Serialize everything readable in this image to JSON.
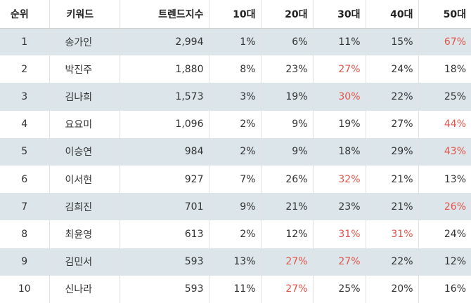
{
  "table": {
    "headers": [
      "순위",
      "키워드",
      "트렌드지수",
      "10대",
      "20대",
      "30대",
      "40대",
      "50대"
    ],
    "highlight_color": "#e2554a",
    "rows": [
      {
        "rank": "1",
        "keyword": "송가인",
        "index": "2,994",
        "a10": "1%",
        "a20": "6%",
        "a30": "11%",
        "a40": "15%",
        "a50": "67%",
        "hi": [
          "a50"
        ]
      },
      {
        "rank": "2",
        "keyword": "박진주",
        "index": "1,880",
        "a10": "8%",
        "a20": "23%",
        "a30": "27%",
        "a40": "24%",
        "a50": "18%",
        "hi": [
          "a30"
        ]
      },
      {
        "rank": "3",
        "keyword": "김나희",
        "index": "1,573",
        "a10": "3%",
        "a20": "19%",
        "a30": "30%",
        "a40": "22%",
        "a50": "25%",
        "hi": [
          "a30"
        ]
      },
      {
        "rank": "4",
        "keyword": "요요미",
        "index": "1,096",
        "a10": "2%",
        "a20": "9%",
        "a30": "19%",
        "a40": "27%",
        "a50": "44%",
        "hi": [
          "a50"
        ]
      },
      {
        "rank": "5",
        "keyword": "이승연",
        "index": "984",
        "a10": "2%",
        "a20": "9%",
        "a30": "18%",
        "a40": "29%",
        "a50": "43%",
        "hi": [
          "a50"
        ]
      },
      {
        "rank": "6",
        "keyword": "이서현",
        "index": "927",
        "a10": "7%",
        "a20": "26%",
        "a30": "32%",
        "a40": "21%",
        "a50": "13%",
        "hi": [
          "a30"
        ]
      },
      {
        "rank": "7",
        "keyword": "김희진",
        "index": "701",
        "a10": "9%",
        "a20": "21%",
        "a30": "23%",
        "a40": "21%",
        "a50": "26%",
        "hi": [
          "a50"
        ]
      },
      {
        "rank": "8",
        "keyword": "최윤영",
        "index": "613",
        "a10": "2%",
        "a20": "12%",
        "a30": "31%",
        "a40": "31%",
        "a50": "24%",
        "hi": [
          "a30",
          "a40"
        ]
      },
      {
        "rank": "9",
        "keyword": "김민서",
        "index": "593",
        "a10": "13%",
        "a20": "27%",
        "a30": "27%",
        "a40": "22%",
        "a50": "12%",
        "hi": [
          "a20",
          "a30"
        ]
      },
      {
        "rank": "10",
        "keyword": "신나라",
        "index": "593",
        "a10": "11%",
        "a20": "27%",
        "a30": "25%",
        "a40": "20%",
        "a50": "16%",
        "hi": [
          "a20"
        ]
      }
    ]
  }
}
